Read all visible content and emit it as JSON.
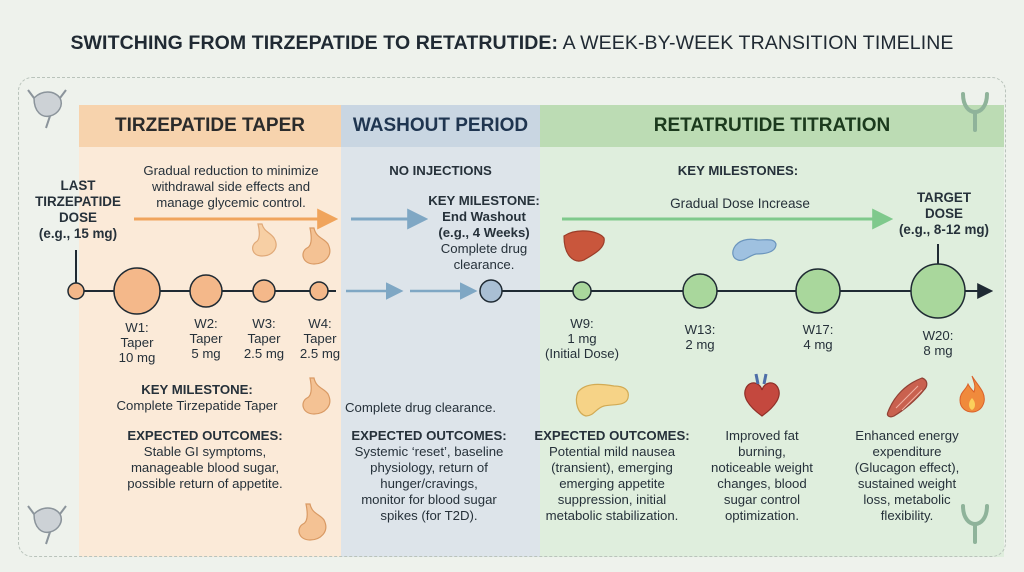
{
  "title": {
    "bold": "SWITCHING FROM TIRZEPATIDE TO RETATRUTIDE:",
    "rest": " A WEEK-BY-WEEK TRANSITION TIMELINE"
  },
  "phases": {
    "taper": {
      "header": "TIRZEPATIDE TAPER",
      "description": [
        "Gradual reduction to minimize",
        "withdrawal side effects and",
        "manage glycemic control."
      ],
      "milestone_title": "KEY MILESTONE:",
      "milestone_text": "Complete Tirzepatide Taper",
      "outcomes_title": "EXPECTED OUTCOMES:",
      "outcomes_text": [
        "Stable GI symptoms,",
        "manageable blood sugar,",
        "possible return of appetite."
      ]
    },
    "washout": {
      "header": "WASHOUT PERIOD",
      "no_injections": "NO INJECTIONS",
      "milestone_title": "KEY MILESTONE:",
      "milestone_name": "End Washout",
      "milestone_when": "(e.g., 4 Weeks)",
      "milestone_text": [
        "Complete drug",
        "clearance."
      ],
      "clearance_note": "Complete drug clearance.",
      "outcomes_title": "EXPECTED OUTCOMES:",
      "outcomes_text": [
        "Systemic ‘reset’, baseline",
        "physiology, return of",
        "hunger/cravings,",
        "monitor for blood sugar",
        "spikes (for T2D)."
      ]
    },
    "titration": {
      "header": "RETATRUTIDE TITRATION",
      "milestones_title": "KEY MILESTONES:",
      "arrow_label": "Gradual Dose Increase",
      "outcomes_title": "EXPECTED OUTCOMES:",
      "outcomes_1": [
        "Potential mild nausea",
        "(transient), emerging",
        "emerging appetite",
        "suppression, initial",
        "metabolic stabilization."
      ],
      "outcomes_2": [
        "Improved fat",
        "burning,",
        "noticeable weight",
        "changes, blood",
        "sugar control",
        "optimization."
      ],
      "outcomes_3": [
        "Enhanced energy",
        "expenditure",
        "(Glucagon effect),",
        "sustained weight",
        "loss, metabolic",
        "flexibility."
      ]
    }
  },
  "endpoints": {
    "start": {
      "lines": [
        "LAST",
        "TIRZEPATIDE",
        "DOSE"
      ],
      "example": "(e.g., 15 mg)"
    },
    "target": {
      "lines": [
        "TARGET",
        "DOSE"
      ],
      "example": "(e.g., 8-12 mg)"
    }
  },
  "weeks": [
    {
      "week": "W1:",
      "lines": [
        "Taper",
        "10 mg"
      ]
    },
    {
      "week": "W2:",
      "lines": [
        "Taper",
        "5 mg"
      ]
    },
    {
      "week": "W3:",
      "lines": [
        "Taper",
        "2.5 mg"
      ]
    },
    {
      "week": "W4:",
      "lines": [
        "Taper",
        "2.5 mg"
      ]
    },
    {
      "week": "W9:",
      "lines": [
        "1 mg",
        "(Initial Dose)"
      ]
    },
    {
      "week": "W13:",
      "lines": [
        "2 mg"
      ]
    },
    {
      "week": "W17:",
      "lines": [
        "4 mg"
      ]
    },
    {
      "week": "W20:",
      "lines": [
        "8 mg"
      ]
    }
  ],
  "icons": [
    "neuron-icon",
    "neuron-icon",
    "brand-logo-icon",
    "brand-logo-icon",
    "stomach-icon",
    "stomach-icon",
    "stomach-icon",
    "stomach-icon",
    "liver-icon",
    "pancreas-icon",
    "pancreas-icon",
    "heart-icon",
    "muscle-icon",
    "flame-icon"
  ],
  "colors": {
    "taper": "#f7d3ad",
    "washout": "#c9d6e2",
    "titration": "#bcdcb4",
    "taper_node": "#f4b88a",
    "washout_node": "#a9bfd4",
    "titration_node": "#a9d79c",
    "taper_arrow": "#f0a45c",
    "washout_arrow": "#7fa7c4",
    "titration_arrow": "#7fc98c"
  }
}
